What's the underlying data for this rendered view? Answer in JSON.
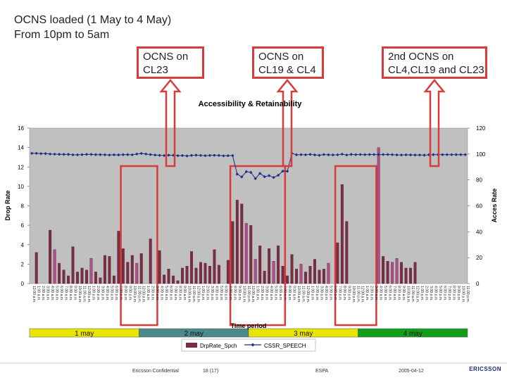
{
  "slide": {
    "title_line1": "OCNS loaded (1 May to 4 May)",
    "title_line2": "From 10pm to 5am"
  },
  "callouts": [
    {
      "line1": "OCNS on",
      "line2": "CL23"
    },
    {
      "line1": "OCNS on",
      "line2": "CL19 & CL4"
    },
    {
      "line1": "2nd OCNS on",
      "line2": "CL4,CL19 and CL23"
    }
  ],
  "footer": {
    "confidential": "Ericsson Confidential",
    "page": "18 (17)",
    "company": "ESPA",
    "date": "2005-04-12",
    "logo": "ERICSSON"
  },
  "colors": {
    "plot_bg": "#c0c0c0",
    "bar": "#7b2d42",
    "bar_highlight": "#b04d8a",
    "line": "#1c2f86",
    "callout_border": "#d93a3a",
    "day_yellow": "#e8e600",
    "day_teal": "#4a8a8a",
    "day_green": "#12a01a"
  },
  "chart_data": {
    "type": "bar",
    "title": "Accessibility & Retainability",
    "xlabel": "Time period",
    "ylabel_left": "Drop Rate",
    "ylabel_right": "Acces Rate",
    "ylim_left": [
      0,
      16
    ],
    "yticks_left": [
      0,
      2,
      4,
      6,
      8,
      10,
      12,
      14,
      16
    ],
    "ylim_right": [
      0,
      120
    ],
    "yticks_right": [
      0,
      20,
      40,
      60,
      80,
      100,
      120
    ],
    "grid": false,
    "legend_position": "bottom",
    "categories": [
      "12:00 a.m.",
      "1:00 a.m.",
      "2:00 a.m.",
      "3:00 a.m.",
      "4:00 a.m.",
      "5:00 a.m.",
      "6:00 a.m.",
      "7:00 a.m.",
      "8:00 a.m.",
      "9:00 a.m.",
      "10:00 a.m.",
      "11:00 a.m.",
      "12:00 p.m.",
      "1:00 p.m.",
      "2:00 p.m.",
      "3:00 p.m.",
      "4:00 p.m.",
      "5:00 p.m.",
      "6:00 p.m.",
      "7:00 p.m.",
      "8:00 p.m.",
      "9:00 p.m.",
      "10:00 p.m.",
      "11:00 p.m.",
      "12:00 a.m.",
      "1:00 a.m.",
      "2:00 a.m.",
      "3:00 a.m.",
      "4:00 a.m.",
      "5:00 a.m.",
      "6:00 a.m.",
      "7:00 a.m.",
      "8:00 a.m.",
      "9:00 a.m.",
      "10:00 a.m.",
      "11:00 a.m.",
      "12:00 p.m.",
      "1:00 p.m.",
      "2:00 p.m.",
      "3:00 p.m.",
      "4:00 p.m.",
      "5:00 p.m.",
      "6:00 p.m.",
      "7:00 p.m.",
      "8:00 p.m.",
      "9:00 p.m.",
      "10:00 p.m.",
      "11:00 p.m.",
      "12:00 a.m.",
      "1:00 a.m.",
      "2:00 a.m.",
      "3:00 a.m.",
      "4:00 a.m.",
      "5:00 a.m.",
      "6:00 a.m.",
      "7:00 a.m.",
      "8:00 a.m.",
      "9:00 a.m.",
      "10:00 a.m.",
      "11:00 a.m.",
      "12:00 p.m.",
      "1:00 p.m.",
      "2:00 p.m.",
      "3:00 p.m.",
      "4:00 p.m.",
      "5:00 p.m.",
      "6:00 p.m.",
      "7:00 p.m.",
      "8:00 p.m.",
      "9:00 p.m.",
      "10:00 p.m.",
      "11:00 p.m.",
      "12:00 a.m.",
      "1:00 a.m.",
      "2:00 a.m.",
      "3:00 a.m.",
      "4:00 a.m.",
      "5:00 a.m.",
      "6:00 a.m.",
      "7:00 a.m.",
      "8:00 a.m.",
      "9:00 a.m.",
      "10:00 a.m.",
      "11:00 a.m.",
      "12:00 p.m.",
      "1:00 p.m.",
      "2:00 p.m.",
      "3:00 p.m.",
      "4:00 p.m.",
      "5:00 p.m.",
      "6:00 p.m.",
      "7:00 p.m.",
      "8:00 p.m.",
      "9:00 p.m.",
      "10:00 p.m.",
      "11:00 p.m."
    ],
    "series": [
      {
        "name": "DrpRate_Spch",
        "axis": "left",
        "kind": "bar",
        "values": [
          0,
          3.2,
          0,
          0,
          5.5,
          3.5,
          2.1,
          1.4,
          0.8,
          3.8,
          1.2,
          1.6,
          1.4,
          2.6,
          1.2,
          0.6,
          2.9,
          2.8,
          0.8,
          5.4,
          3.6,
          2.2,
          2.9,
          2.1,
          3.1,
          0,
          4.6,
          0,
          3.4,
          0.9,
          1.5,
          0.8,
          0.3,
          1.6,
          1.8,
          3.3,
          1.6,
          2.2,
          2.1,
          1.8,
          3.5,
          1.9,
          0,
          2.4,
          6.4,
          8.6,
          8.2,
          6.2,
          6.0,
          2.5,
          3.9,
          1.3,
          3.6,
          2.3,
          3.9,
          1.8,
          0.8,
          3.0,
          1.5,
          2.0,
          1.2,
          1.8,
          2.5,
          1.4,
          1.5,
          2.1,
          0,
          4.2,
          10.2,
          6.4,
          0,
          0,
          0,
          0,
          0,
          0,
          14.0,
          2.8,
          2.3,
          2.2,
          2.6,
          2.2,
          1.6,
          1.6,
          2.2,
          0,
          0,
          0,
          0,
          0,
          0,
          0,
          0,
          0,
          0,
          0
        ],
        "highlight_indices": [
          5,
          13,
          23,
          27,
          47,
          49,
          53,
          59,
          65,
          75,
          76,
          79,
          80,
          85
        ]
      },
      {
        "name": "CSSR_SPEECH",
        "axis": "right",
        "kind": "line",
        "values": [
          100.5,
          100.5,
          100.3,
          100.3,
          100,
          99.9,
          99.8,
          99.7,
          99.7,
          99.4,
          99.4,
          99.5,
          99.7,
          99.7,
          99.5,
          99.5,
          99.4,
          99.2,
          99.4,
          99.3,
          99.5,
          99.5,
          99.4,
          100,
          100.4,
          100,
          99.6,
          99.2,
          99,
          98.8,
          99.1,
          99,
          98.7,
          98.8,
          98.5,
          98.9,
          99.1,
          98.9,
          98.7,
          98.9,
          99,
          98.9,
          98.6,
          98.7,
          98.8,
          84.5,
          82.3,
          86.4,
          85.8,
          81,
          85,
          82.5,
          83.3,
          81.9,
          83.6,
          86.8,
          86.7,
          100.5,
          99.4,
          99.5,
          99.4,
          99.7,
          99.3,
          99,
          99.6,
          99.4,
          99.3,
          99.4,
          99.9,
          99.2,
          99.7,
          99.5,
          99.6,
          99.5,
          99.6,
          99.6,
          99.6,
          99.6,
          99.6,
          99.5,
          99.3,
          99.2,
          99.4,
          99.3,
          99.2,
          99.2,
          99.1,
          99.4,
          99.5,
          99.5,
          99.5,
          99.5,
          99.5,
          99.5,
          99.5,
          99.5
        ]
      }
    ],
    "day_bands": [
      {
        "label": "1 may",
        "color": "yellow",
        "start": 0,
        "end": 23
      },
      {
        "label": "2 may",
        "color": "teal",
        "start": 24,
        "end": 47
      },
      {
        "label": "3 may",
        "color": "yellow",
        "start": 48,
        "end": 71
      },
      {
        "label": "4 may",
        "color": "green",
        "start": 72,
        "end": 95
      }
    ],
    "highlight_boxes": [
      {
        "from_index": 20,
        "to_index": 27
      },
      {
        "from_index": 44,
        "to_index": 55
      },
      {
        "from_index": 67,
        "to_index": 75
      }
    ]
  }
}
